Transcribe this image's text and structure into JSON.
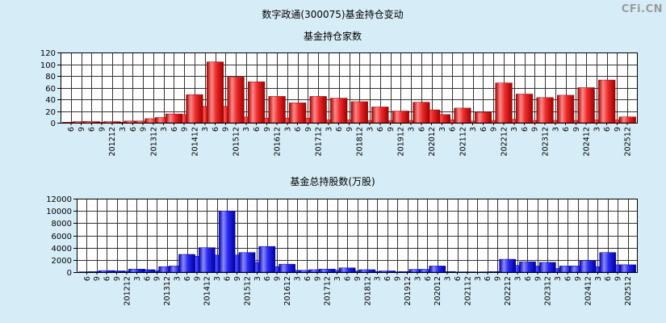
{
  "page": {
    "title": "数字政通(300075)基金持仓变动",
    "watermark": "CFi.CN",
    "background": "#d6ecf6"
  },
  "chart_data": [
    {
      "type": "bar",
      "title": "基金持仓家数",
      "categories": [
        "6",
        "9",
        "6",
        "9",
        "201212",
        "3",
        "6",
        "9",
        "201312",
        "3",
        "6",
        "9",
        "201412",
        "3",
        "6",
        "9",
        "201512",
        "3",
        "6",
        "9",
        "201612",
        "3",
        "6",
        "9",
        "201712",
        "3",
        "6",
        "9",
        "201812",
        "3",
        "6",
        "9",
        "201912",
        "3",
        "6",
        "202012",
        "3",
        "6",
        "202112",
        "3",
        "6",
        "9",
        "202212",
        "3",
        "6",
        "9",
        "202312",
        "3",
        "6",
        "9",
        "202412",
        "3",
        "6",
        "9",
        "202512"
      ],
      "values": [
        1,
        2,
        2,
        1,
        2,
        1,
        3,
        3,
        7,
        9,
        15,
        14,
        48,
        28,
        104,
        28,
        78,
        10,
        70,
        8,
        45,
        8,
        34,
        8,
        45,
        5,
        42,
        5,
        36,
        4,
        27,
        4,
        20,
        4,
        35,
        22,
        14,
        5,
        25,
        3,
        18,
        4,
        68,
        6,
        49,
        4,
        43,
        4,
        47,
        4,
        60,
        5,
        73,
        5,
        10
      ],
      "ylim": [
        0,
        120
      ],
      "yticks": [
        0,
        20,
        40,
        60,
        80,
        100,
        120
      ],
      "grid": true,
      "bar_color": "#ee2c2c",
      "bar_highlight": "#ff8a8a",
      "bar_shadow": "#a00000"
    },
    {
      "type": "bar",
      "title": "基金总持股数(万股)",
      "categories": [
        "6",
        "9",
        "6",
        "9",
        "201212",
        "3",
        "6",
        "9",
        "201312",
        "3",
        "6",
        "9",
        "201412",
        "3",
        "6",
        "9",
        "201512",
        "3",
        "6",
        "9",
        "201612",
        "3",
        "6",
        "9",
        "201712",
        "3",
        "6",
        "9",
        "201812",
        "3",
        "6",
        "9",
        "201912",
        "3",
        "6",
        "202012",
        "3",
        "6",
        "202112",
        "3",
        "6",
        "9",
        "202212",
        "3",
        "6",
        "9",
        "202312",
        "3",
        "6",
        "9",
        "202412",
        "3",
        "6",
        "9",
        "202512"
      ],
      "values": [
        50,
        100,
        250,
        200,
        150,
        500,
        400,
        250,
        900,
        1000,
        2900,
        2600,
        4000,
        2800,
        10000,
        2800,
        3200,
        1600,
        4200,
        900,
        1300,
        300,
        300,
        400,
        500,
        300,
        700,
        200,
        400,
        100,
        200,
        50,
        100,
        450,
        450,
        1000,
        100,
        30,
        50,
        20,
        50,
        100,
        2100,
        1100,
        1700,
        1000,
        1600,
        600,
        1000,
        1000,
        1900,
        900,
        3200,
        1200,
        1200
      ],
      "ylim": [
        0,
        12000
      ],
      "yticks": [
        0,
        2000,
        4000,
        6000,
        8000,
        10000,
        12000
      ],
      "grid": true,
      "bar_color": "#2a2af0",
      "bar_highlight": "#8a8aff",
      "bar_shadow": "#0000a0"
    }
  ]
}
